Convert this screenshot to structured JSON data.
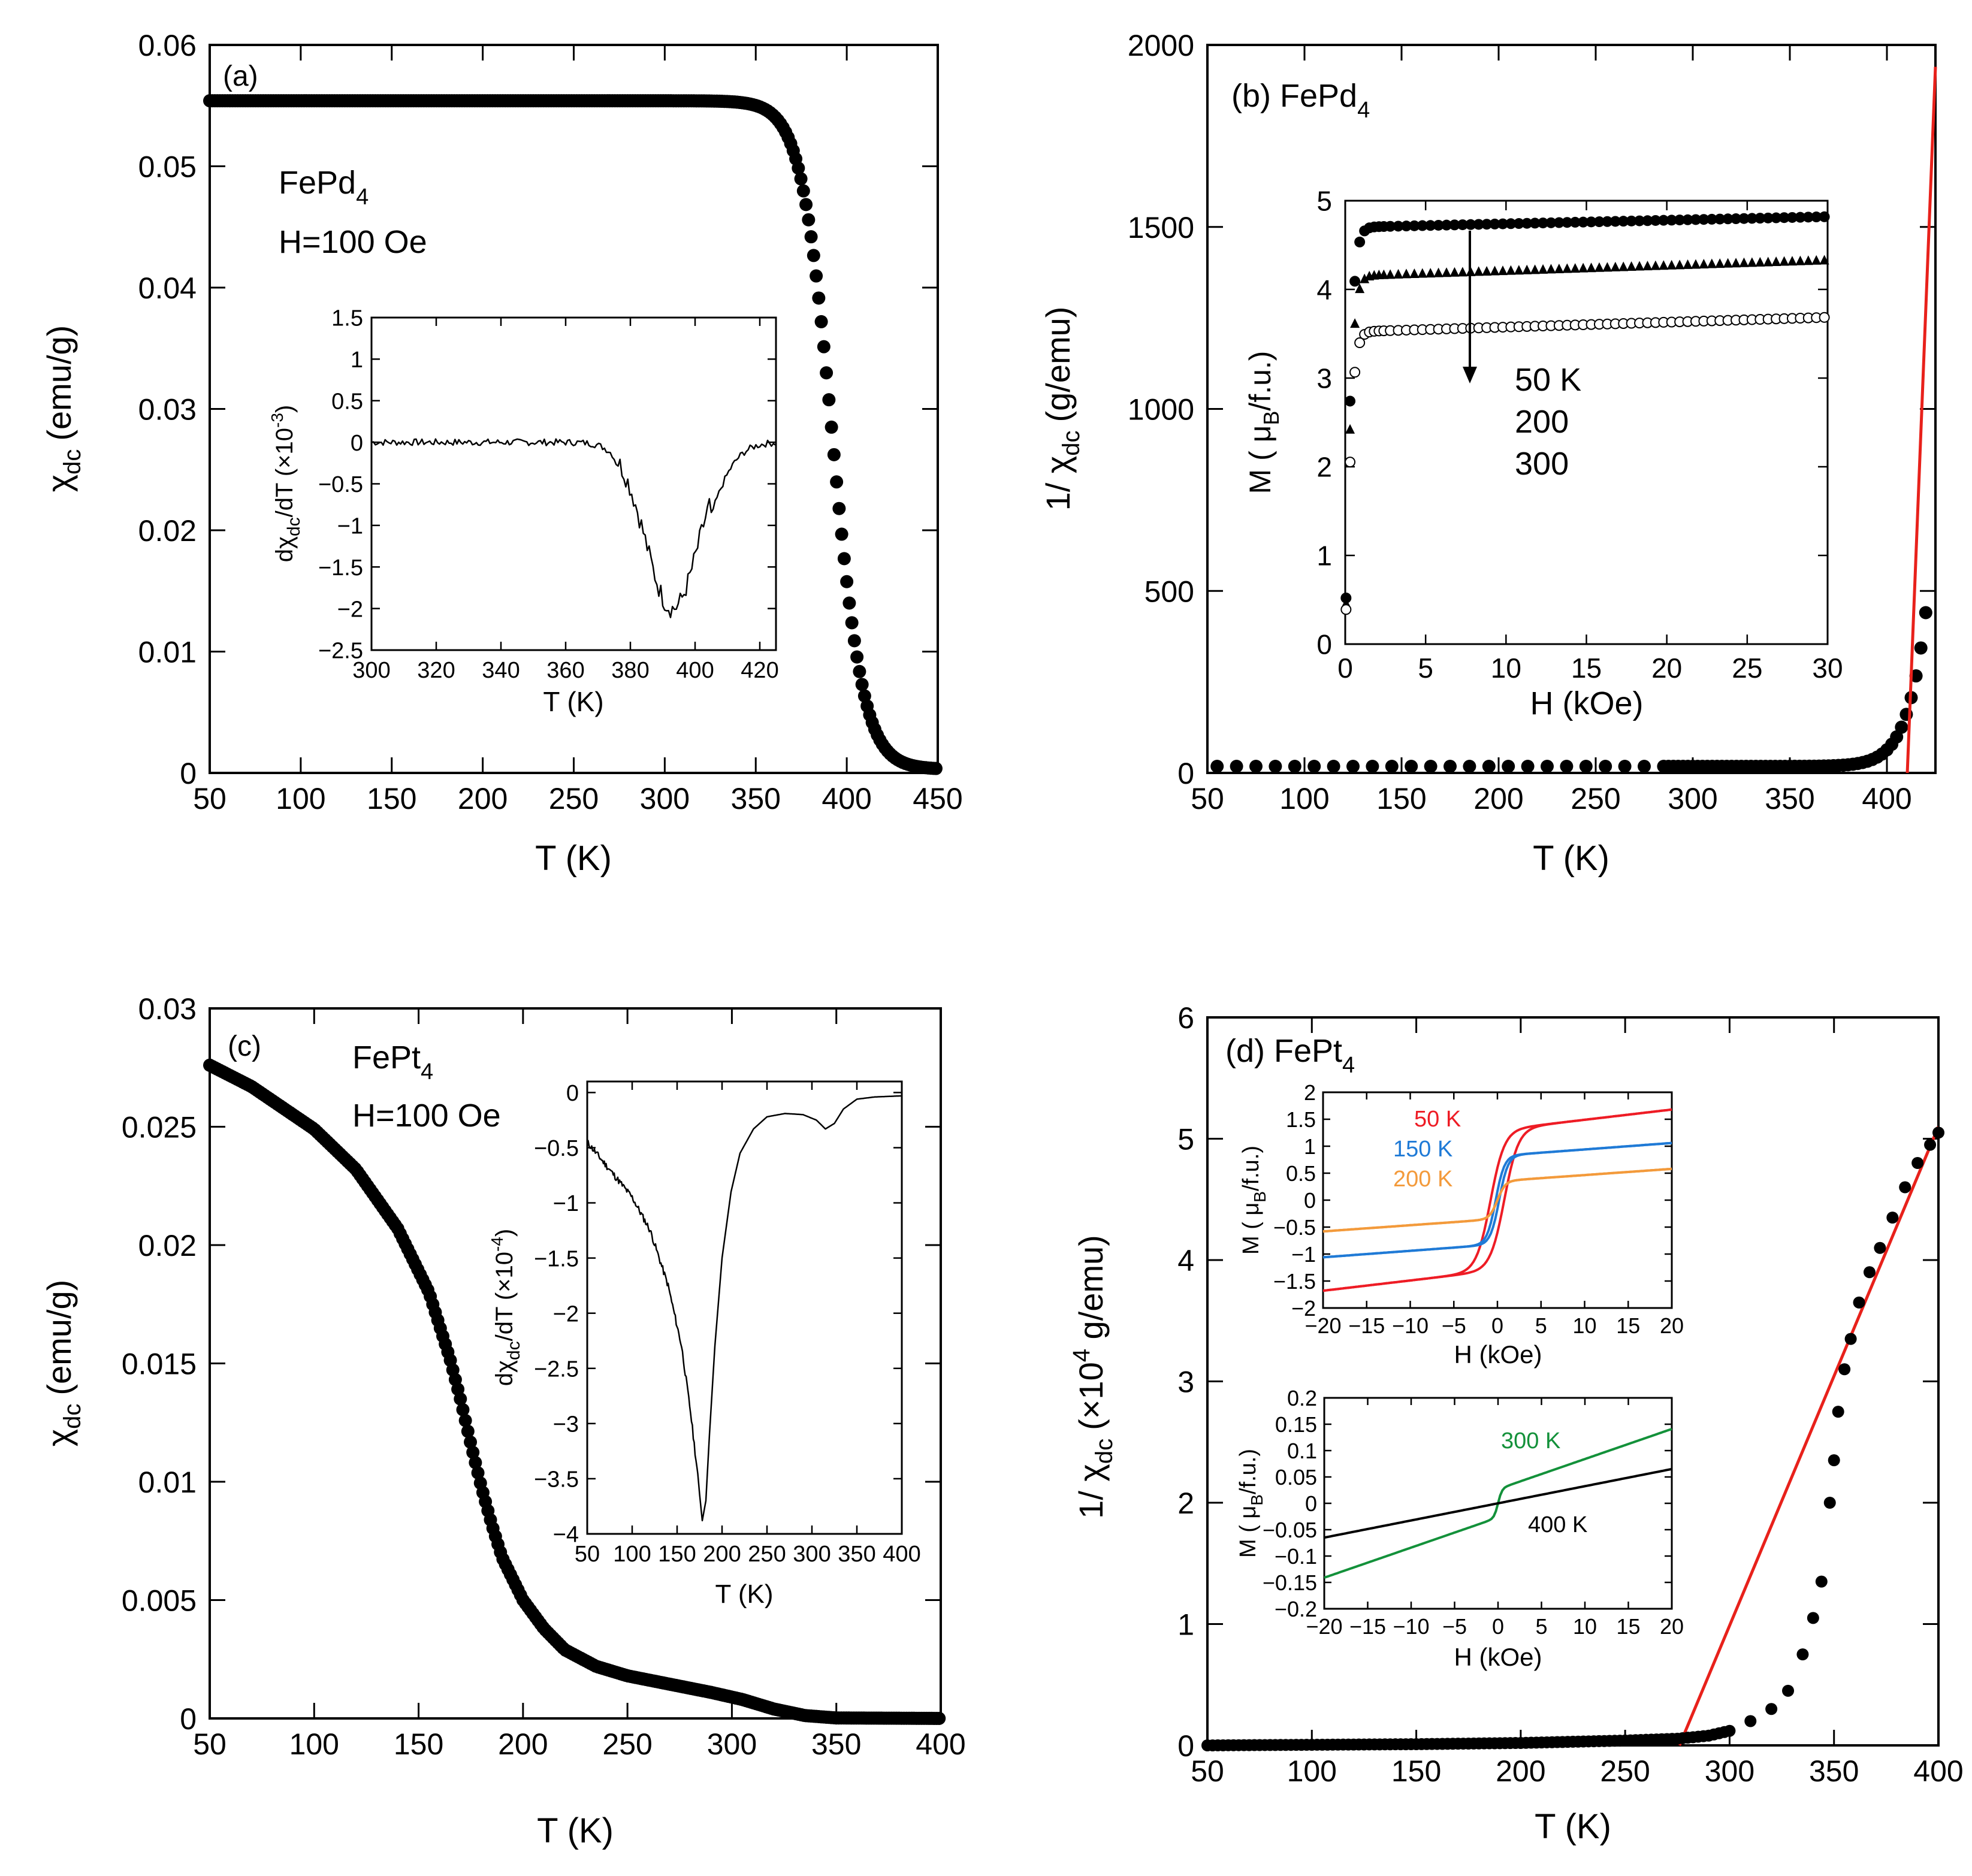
{
  "figure": {
    "panel_count": 4
  },
  "colors": {
    "fit_line": "#e8211b",
    "h50": "#ee1c25",
    "h150": "#1f7ad6",
    "h200": "#f39a3b",
    "h300": "#13913a",
    "h400": "#000000"
  },
  "chart_data": [
    {
      "id": "a",
      "type": "scatter",
      "panel_label": "(a)",
      "ylabel_main": "χ",
      "ylabel_sub": "dc",
      "ylabel_unit": "(emu/g)",
      "xlabel": "T (K)",
      "xlim": [
        50,
        450
      ],
      "ylim": [
        0,
        0.06
      ],
      "xticks": [
        50,
        100,
        150,
        200,
        250,
        300,
        350,
        400,
        450
      ],
      "xtick_labels": [
        "50",
        "100",
        "150",
        "200",
        "250",
        "300",
        "350",
        "400",
        "450"
      ],
      "yticks": [
        0,
        0.01,
        0.02,
        0.03,
        0.04,
        0.05,
        0.06
      ],
      "ytick_labels": [
        "0",
        "0.01",
        "0.02",
        "0.03",
        "0.04",
        "0.05",
        "0.06"
      ],
      "annotation_compound": "FePd",
      "annotation_compound_sub": "4",
      "annotation_field": "H=100 Oe",
      "series": [
        {
          "name": "chi_dc",
          "marker": "filled-circle",
          "model": "sigmoid",
          "params": {
            "amp": 0.0551,
            "center": 392,
            "width": 8.5,
            "baseline": 0.0003,
            "slope": 8e-07
          }
        }
      ],
      "inset": {
        "type": "line",
        "ylabel_main": "dχ",
        "ylabel_sub": "dc",
        "ylabel_rest": "/dT (×10",
        "ylabel_exp": "-3",
        "ylabel_end": ")",
        "xlabel": "T (K)",
        "xlim": [
          300,
          425
        ],
        "ylim": [
          -2.5,
          1.5
        ],
        "xticks": [
          300,
          320,
          340,
          360,
          380,
          400,
          420
        ],
        "xtick_labels": [
          "300",
          "320",
          "340",
          "360",
          "380",
          "400",
          "420"
        ],
        "yticks": [
          -2.5,
          -2,
          -1.5,
          -1,
          -0.5,
          0,
          0.5,
          1,
          1.5
        ],
        "ytick_labels": [
          "−2.5",
          "−2",
          "−1.5",
          "−1",
          "−0.5",
          "0",
          "0.5",
          "1",
          "1.5"
        ],
        "model": "gauss",
        "params": {
          "center": 393,
          "width": 11.5,
          "depth": -2.0,
          "noise": 0.04
        }
      }
    },
    {
      "id": "b",
      "type": "scatter",
      "panel_label": "(b) FePd",
      "panel_label_sub": "4",
      "ylabel_main": "1/ χ",
      "ylabel_sub": "dc",
      "ylabel_unit": "(g/emu)",
      "xlabel": "T (K)",
      "xlim": [
        50,
        425
      ],
      "ylim": [
        0,
        2000
      ],
      "xticks": [
        50,
        100,
        150,
        200,
        250,
        300,
        350,
        400
      ],
      "xtick_labels": [
        "50",
        "100",
        "150",
        "200",
        "250",
        "300",
        "350",
        "400"
      ],
      "yticks": [
        0,
        500,
        1000,
        1500,
        2000
      ],
      "ytick_labels": [
        "0",
        "500",
        "1000",
        "1500",
        "2000"
      ],
      "series": [
        {
          "name": "inverse_chi",
          "marker": "filled-circle",
          "model": "inverse_of_panel_a",
          "x_start": 55,
          "x_end": 422
        },
        {
          "name": "curie_weiss_fit",
          "type": "line",
          "color": "#e8211b",
          "points": [
            [
              410.5,
              0
            ],
            [
              425,
              1940
            ]
          ]
        }
      ],
      "inset": {
        "type": "scatter",
        "ylabel_main": "M ( μ",
        "ylabel_sub": "B",
        "ylabel_end": "/f.u.)",
        "xlabel": "H (kOe)",
        "xlim": [
          0,
          30
        ],
        "ylim": [
          0,
          5
        ],
        "xticks": [
          0,
          5,
          10,
          15,
          20,
          25,
          30
        ],
        "xtick_labels": [
          "0",
          "5",
          "10",
          "15",
          "20",
          "25",
          "30"
        ],
        "yticks": [
          0,
          1,
          2,
          3,
          4,
          5
        ],
        "ytick_labels": [
          "0",
          "1",
          "2",
          "3",
          "4",
          "5"
        ],
        "arrow_label_lines": [
          "50 K",
          "200",
          "300"
        ],
        "series": [
          {
            "name": "50 K",
            "marker": "filled-circle",
            "msat": 4.7,
            "slope": 0.004,
            "h0": 0.45
          },
          {
            "name": "200 K",
            "marker": "filled-triangle",
            "msat": 4.15,
            "slope": 0.006,
            "h0": 0.45
          },
          {
            "name": "300 K",
            "marker": "open-circle",
            "msat": 3.52,
            "slope": 0.0055,
            "h0": 0.45
          }
        ]
      }
    },
    {
      "id": "c",
      "type": "scatter",
      "panel_label": "(c)",
      "ylabel_main": "χ",
      "ylabel_sub": "dc",
      "ylabel_unit": "(emu/g)",
      "xlabel": "T (K)",
      "xlim": [
        50,
        400
      ],
      "ylim": [
        0,
        0.03
      ],
      "xticks": [
        50,
        100,
        150,
        200,
        250,
        300,
        350,
        400
      ],
      "xtick_labels": [
        "50",
        "100",
        "150",
        "200",
        "250",
        "300",
        "350",
        "400"
      ],
      "yticks": [
        0,
        0.005,
        0.01,
        0.015,
        0.02,
        0.025,
        0.03
      ],
      "ytick_labels": [
        "0",
        "0.005",
        "0.01",
        "0.015",
        "0.02",
        "0.025",
        "0.03"
      ],
      "annotation_compound": "FePt",
      "annotation_compound_sub": "4",
      "annotation_field": "H=100 Oe",
      "series": [
        {
          "name": "chi_dc",
          "marker": "filled-circle",
          "model": "piecewise",
          "points": [
            [
              50,
              0.0276
            ],
            [
              70,
              0.0267
            ],
            [
              100,
              0.0249
            ],
            [
              120,
              0.0232
            ],
            [
              140,
              0.0207
            ],
            [
              155,
              0.018
            ],
            [
              165,
              0.0152
            ],
            [
              170,
              0.0135
            ],
            [
              175,
              0.0116
            ],
            [
              180,
              0.0098
            ],
            [
              185,
              0.0082
            ],
            [
              190,
              0.0068
            ],
            [
              200,
              0.005
            ],
            [
              210,
              0.0038
            ],
            [
              220,
              0.0029
            ],
            [
              235,
              0.0022
            ],
            [
              250,
              0.0018
            ],
            [
              270,
              0.00145
            ],
            [
              290,
              0.0011
            ],
            [
              305,
              0.0008
            ],
            [
              320,
              0.0004
            ],
            [
              335,
              0.00012
            ],
            [
              350,
              2e-05
            ],
            [
              400,
              0.0
            ]
          ]
        }
      ],
      "inset": {
        "type": "line",
        "ylabel_main": "dχ",
        "ylabel_sub": "dc",
        "ylabel_rest": "/dT (×10",
        "ylabel_exp": "-4",
        "ylabel_end": ")",
        "xlabel": "T (K)",
        "xlim": [
          50,
          400
        ],
        "ylim": [
          -4,
          0.1
        ],
        "xticks": [
          50,
          100,
          150,
          200,
          250,
          300,
          350,
          400
        ],
        "xtick_labels": [
          "50",
          "100",
          "150",
          "200",
          "250",
          "300",
          "350",
          "400"
        ],
        "yticks": [
          -4,
          -3.5,
          -3,
          -2.5,
          -2,
          -1.5,
          -1,
          -0.5,
          0
        ],
        "ytick_labels": [
          "−4",
          "−3.5",
          "−3",
          "−2.5",
          "−2",
          "−1.5",
          "−1",
          "−0.5",
          "0"
        ],
        "points": [
          [
            50,
            -0.45
          ],
          [
            60,
            -0.55
          ],
          [
            80,
            -0.75
          ],
          [
            100,
            -0.95
          ],
          [
            120,
            -1.25
          ],
          [
            140,
            -1.75
          ],
          [
            155,
            -2.3
          ],
          [
            165,
            -2.9
          ],
          [
            172,
            -3.4
          ],
          [
            178,
            -3.88
          ],
          [
            182,
            -3.7
          ],
          [
            186,
            -3.1
          ],
          [
            192,
            -2.3
          ],
          [
            200,
            -1.5
          ],
          [
            210,
            -0.9
          ],
          [
            220,
            -0.55
          ],
          [
            235,
            -0.33
          ],
          [
            250,
            -0.22
          ],
          [
            270,
            -0.19
          ],
          [
            290,
            -0.2
          ],
          [
            305,
            -0.25
          ],
          [
            315,
            -0.33
          ],
          [
            325,
            -0.28
          ],
          [
            335,
            -0.15
          ],
          [
            350,
            -0.06
          ],
          [
            370,
            -0.04
          ],
          [
            400,
            -0.03
          ]
        ]
      }
    },
    {
      "id": "d",
      "type": "scatter",
      "panel_label": "(d) FePt",
      "panel_label_sub": "4",
      "ylabel_main": "1/ χ",
      "ylabel_sub": "dc",
      "ylabel_unit_pre": "(×10",
      "ylabel_exp": "4",
      "ylabel_unit": " g/emu)",
      "xlabel": "T (K)",
      "xlim": [
        50,
        400
      ],
      "ylim": [
        0,
        6
      ],
      "xticks": [
        50,
        100,
        150,
        200,
        250,
        300,
        350,
        400
      ],
      "xtick_labels": [
        "50",
        "100",
        "150",
        "200",
        "250",
        "300",
        "350",
        "400"
      ],
      "yticks": [
        0,
        1,
        2,
        3,
        4,
        5,
        6
      ],
      "ytick_labels": [
        "0",
        "1",
        "2",
        "3",
        "4",
        "5",
        "6"
      ],
      "series": [
        {
          "name": "inverse_chi",
          "marker": "filled-circle",
          "points": [
            [
              50,
              0.0
            ],
            [
              100,
              0.005
            ],
            [
              150,
              0.01
            ],
            [
              200,
              0.02
            ],
            [
              250,
              0.04
            ],
            [
              275,
              0.055
            ],
            [
              290,
              0.08
            ],
            [
              300,
              0.12
            ],
            [
              310,
              0.2
            ],
            [
              320,
              0.3
            ],
            [
              328,
              0.45
            ],
            [
              335,
              0.75
            ],
            [
              340,
              1.05
            ],
            [
              344,
              1.35
            ],
            [
              348,
              2.0
            ],
            [
              350,
              2.35
            ],
            [
              352,
              2.75
            ],
            [
              355,
              3.1
            ],
            [
              358,
              3.35
            ],
            [
              362,
              3.65
            ],
            [
              367,
              3.9
            ],
            [
              372,
              4.1
            ],
            [
              378,
              4.35
            ],
            [
              384,
              4.6
            ],
            [
              390,
              4.8
            ],
            [
              396,
              4.95
            ],
            [
              400,
              5.05
            ]
          ]
        },
        {
          "name": "curie_weiss_fit",
          "type": "line",
          "color": "#e8211b",
          "points": [
            [
              276,
              0
            ],
            [
              400,
              5.1
            ]
          ]
        }
      ],
      "inset_top": {
        "type": "line",
        "ylabel_main": "M ( μ",
        "ylabel_sub": "B",
        "ylabel_end": "/f.u.)",
        "xlabel": "H (kOe)",
        "xlim": [
          -20,
          20
        ],
        "ylim": [
          -2,
          2
        ],
        "xticks": [
          -20,
          -15,
          -10,
          -5,
          0,
          5,
          10,
          15,
          20
        ],
        "xtick_labels": [
          "−20",
          "−15",
          "−10",
          "−5",
          "0",
          "5",
          "10",
          "15",
          "20"
        ],
        "yticks": [
          -2,
          -1.5,
          -1,
          -0.5,
          0,
          0.5,
          1,
          1.5,
          2
        ],
        "ytick_labels": [
          "−2",
          "−1.5",
          "−1",
          "−0.5",
          "0",
          "0.5",
          "1",
          "1.5",
          "2"
        ],
        "series": [
          {
            "name": "50 K",
            "color": "#ee1c25",
            "msat": 1.3,
            "slope": 0.019,
            "width": 1.6,
            "coercive": 0.8
          },
          {
            "name": "150 K",
            "color": "#1f7ad6",
            "msat": 0.82,
            "slope": 0.012,
            "width": 1.0,
            "coercive": 0.2
          },
          {
            "name": "200 K",
            "color": "#f39a3b",
            "msat": 0.35,
            "slope": 0.0115,
            "width": 0.9,
            "coercive": 0.0
          }
        ]
      },
      "inset_bottom": {
        "type": "line",
        "ylabel_main": "M ( μ",
        "ylabel_sub": "B",
        "ylabel_end": "/f.u.)",
        "xlabel": "H (kOe)",
        "xlim": [
          -20,
          20
        ],
        "ylim": [
          -0.2,
          0.2
        ],
        "xticks": [
          -20,
          -15,
          -10,
          -5,
          0,
          5,
          10,
          15,
          20
        ],
        "xtick_labels": [
          "−20",
          "−15",
          "−10",
          "−5",
          "0",
          "5",
          "10",
          "15",
          "20"
        ],
        "yticks": [
          -0.2,
          -0.15,
          -0.1,
          -0.05,
          0,
          0.05,
          0.1,
          0.15,
          0.2
        ],
        "ytick_labels": [
          "−0.2",
          "−0.15",
          "−0.1",
          "−0.05",
          "0",
          "0.05",
          "0.1",
          "0.15",
          "0.2"
        ],
        "series": [
          {
            "name": "300 K",
            "color": "#13913a",
            "step": 0.027,
            "slope": 0.0057,
            "width": 0.45
          },
          {
            "name": "400 K",
            "color": "#000000",
            "step": 0.0,
            "slope": 0.00325,
            "width": 1.0
          }
        ]
      }
    }
  ]
}
